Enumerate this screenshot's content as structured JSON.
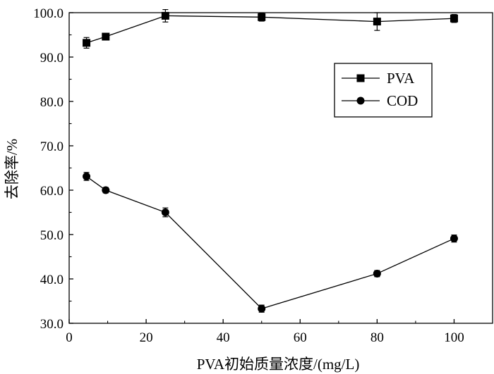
{
  "chart_data": {
    "type": "line",
    "xlabel": "PVA初始质量浓度/(mg/L)",
    "ylabel": "去除率/%",
    "xlim": [
      0,
      110
    ],
    "ylim": [
      30,
      100
    ],
    "xticks": [
      "0",
      "20",
      "40",
      "60",
      "80",
      "100"
    ],
    "yticks": [
      "30.0",
      "40.0",
      "50.0",
      "60.0",
      "70.0",
      "80.0",
      "90.0",
      "100.0"
    ],
    "xtick_values": [
      0,
      20,
      40,
      60,
      80,
      100
    ],
    "ytick_values": [
      30,
      40,
      50,
      60,
      70,
      80,
      90,
      100
    ],
    "grid": false,
    "legend": "top-right",
    "series": [
      {
        "name": "PVA",
        "marker": "square",
        "x": [
          4.5,
          9.5,
          25,
          50,
          80,
          100
        ],
        "y": [
          93.2,
          94.6,
          99.3,
          99.0,
          98.0,
          98.7
        ],
        "err": [
          1.2,
          0.5,
          1.4,
          0.9,
          2.0,
          0.9
        ]
      },
      {
        "name": "COD",
        "marker": "circle",
        "x": [
          4.5,
          9.5,
          25,
          50,
          80,
          100
        ],
        "y": [
          63.1,
          60.0,
          55.0,
          33.3,
          41.2,
          49.1
        ],
        "err": [
          0.9,
          0.6,
          1.0,
          0.8,
          0.7,
          0.8
        ]
      }
    ],
    "colors": {
      "line": "#000000",
      "marker": "#000000"
    }
  }
}
